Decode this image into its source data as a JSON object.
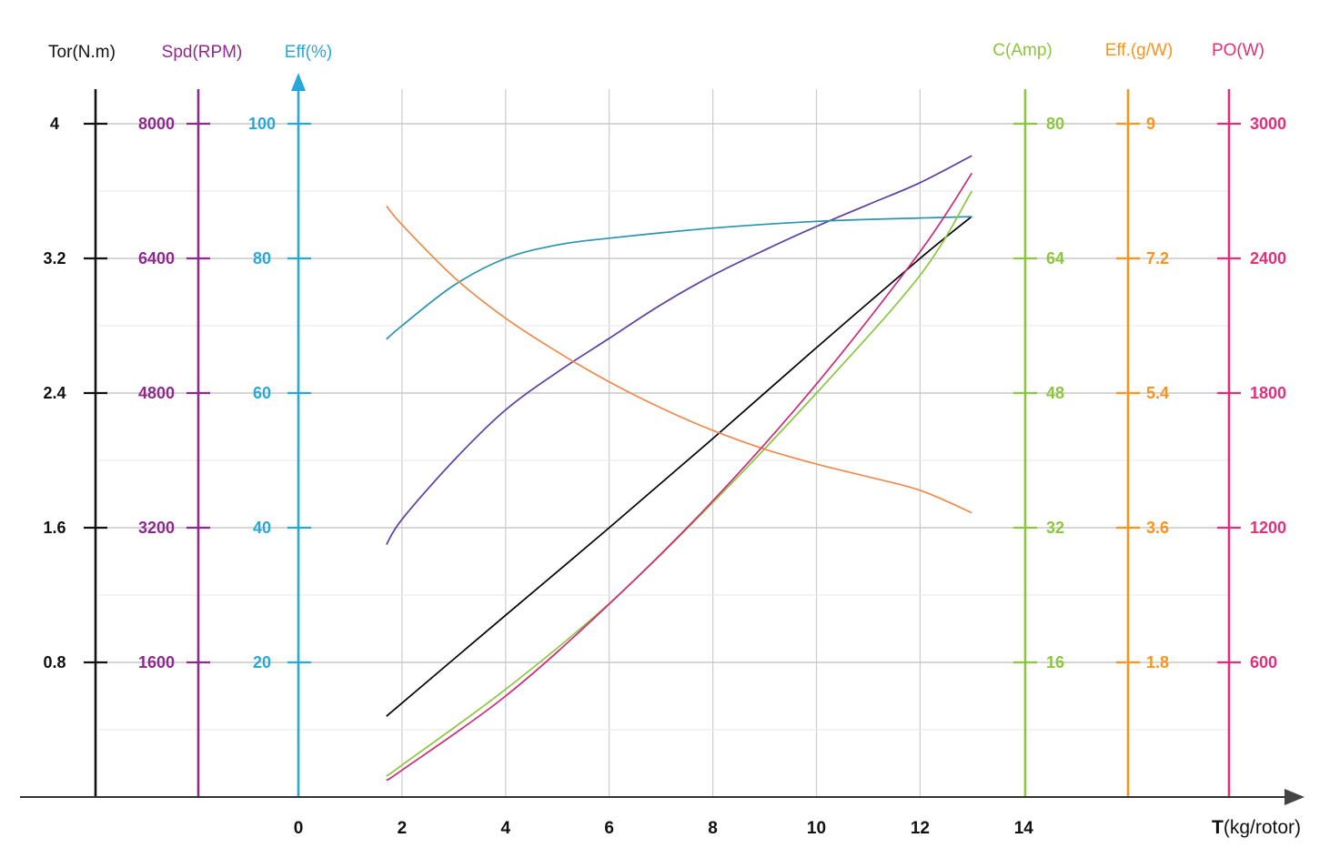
{
  "chart_data": {
    "type": "line",
    "xlabel": {
      "bold": "T",
      "rest": "(kg/rotor)"
    },
    "xticks": [
      0,
      2,
      4,
      6,
      8,
      10,
      12,
      14
    ],
    "xlim": [
      0,
      14
    ],
    "axes": [
      {
        "key": "tor",
        "title": "Tor(N.m)",
        "color": "#111111",
        "range": [
          0,
          4
        ],
        "ticks": [
          "0.8",
          "1.6",
          "2.4",
          "3.2",
          "4"
        ]
      },
      {
        "key": "spd",
        "title": "Spd(RPM)",
        "color": "#8e2a8e",
        "range": [
          0,
          8000
        ],
        "ticks": [
          "1600",
          "3200",
          "4800",
          "6400",
          "8000"
        ]
      },
      {
        "key": "eff",
        "title": "Eff(%)",
        "color": "#2aa7d9",
        "range": [
          0,
          100
        ],
        "ticks": [
          "20",
          "40",
          "60",
          "80",
          "100"
        ]
      },
      {
        "key": "amp",
        "title": "C(Amp)",
        "color": "#8cc63f",
        "range": [
          0,
          80
        ],
        "ticks": [
          "16",
          "32",
          "48",
          "64",
          "80"
        ]
      },
      {
        "key": "gw",
        "title": "Eff.(g/W)",
        "color": "#f7941d",
        "range": [
          0,
          9
        ],
        "ticks": [
          "1.8",
          "3.6",
          "5.4",
          "7.2",
          "9"
        ]
      },
      {
        "key": "po",
        "title": "PO(W)",
        "color": "#e0307a",
        "range": [
          0,
          3000
        ],
        "ticks": [
          "600",
          "1200",
          "1800",
          "2400",
          "3000"
        ]
      }
    ],
    "series": [
      {
        "axis": "tor",
        "color": "#000000",
        "x": [
          1.7,
          4,
          6,
          8,
          10,
          12,
          13
        ],
        "y": [
          0.48,
          1.08,
          1.6,
          2.13,
          2.67,
          3.2,
          3.45
        ]
      },
      {
        "axis": "spd",
        "color": "#5b3fa0",
        "x": [
          1.7,
          2,
          3,
          4,
          5,
          6,
          7,
          8,
          9,
          10,
          11,
          12,
          13
        ],
        "y": [
          3000,
          3300,
          4000,
          4600,
          5050,
          5450,
          5850,
          6200,
          6500,
          6780,
          7040,
          7300,
          7620
        ]
      },
      {
        "axis": "eff",
        "color": "#2a93ad",
        "x": [
          1.7,
          2,
          3,
          4,
          5,
          6,
          8,
          10,
          12,
          13
        ],
        "y": [
          68,
          70,
          76,
          80,
          82,
          83,
          84.5,
          85.5,
          86,
          86.2
        ]
      },
      {
        "axis": "amp",
        "color": "#8cc63f",
        "x": [
          1.7,
          2,
          4,
          6,
          8,
          10,
          12,
          13
        ],
        "y": [
          2.5,
          3.8,
          12.8,
          23,
          35,
          48,
          62,
          72
        ]
      },
      {
        "axis": "gw",
        "color": "#ef8a4a",
        "x": [
          1.7,
          2,
          3,
          4,
          5,
          6,
          7,
          8,
          9,
          10,
          11,
          12,
          13
        ],
        "y": [
          7.9,
          7.65,
          6.95,
          6.4,
          5.95,
          5.55,
          5.2,
          4.9,
          4.65,
          4.45,
          4.28,
          4.1,
          3.8
        ]
      },
      {
        "axis": "po",
        "color": "#cc2a7a",
        "x": [
          1.7,
          2,
          4,
          6,
          8,
          10,
          12,
          13
        ],
        "y": [
          75,
          120,
          450,
          860,
          1320,
          1840,
          2430,
          2780
        ]
      }
    ],
    "grid": true
  }
}
